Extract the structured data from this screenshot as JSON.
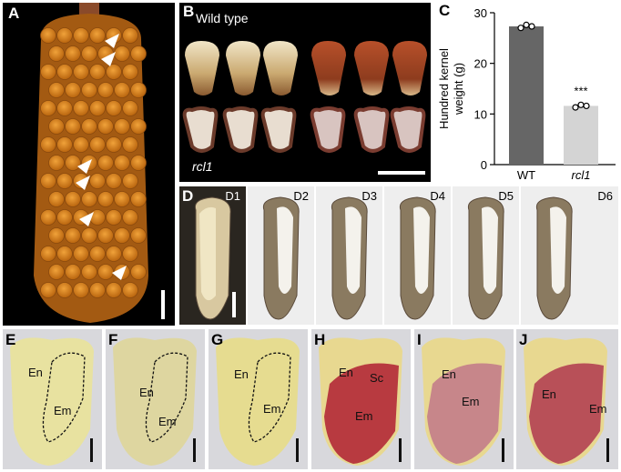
{
  "panel_labels": {
    "A": "A",
    "B": "B",
    "C": "C",
    "D": "D",
    "E": "E",
    "F": "F",
    "G": "G",
    "H": "H",
    "I": "I",
    "J": "J"
  },
  "panel_b": {
    "top_label": "Wild type",
    "bottom_label": "rcl1"
  },
  "panel_d": {
    "stages": [
      "D1",
      "D2",
      "D3",
      "D4",
      "D5",
      "D6"
    ]
  },
  "tissue_labels": {
    "endosperm": "En",
    "embryo": "Em",
    "scutellum": "Sc"
  },
  "colors": {
    "panel_background": "#000000",
    "kernel_orange": "#d9861e",
    "bar_wt": "#666666",
    "bar_rcl1": "#d4d4d4",
    "stain_red": "#b83a40",
    "yellow_endosperm": "#e6dc6a"
  },
  "chart_data": {
    "type": "bar",
    "categories": [
      "WT",
      "rcl1"
    ],
    "values": [
      27.3,
      11.6
    ],
    "points": [
      [
        27.0,
        27.6,
        27.3
      ],
      [
        11.3,
        11.8,
        11.6
      ]
    ],
    "ylabel": "Hundred kernel weight (g)",
    "ylim": [
      0,
      30
    ],
    "yticks": [
      "0",
      "10",
      "20",
      "30"
    ],
    "annotation": "***",
    "grid": false
  }
}
